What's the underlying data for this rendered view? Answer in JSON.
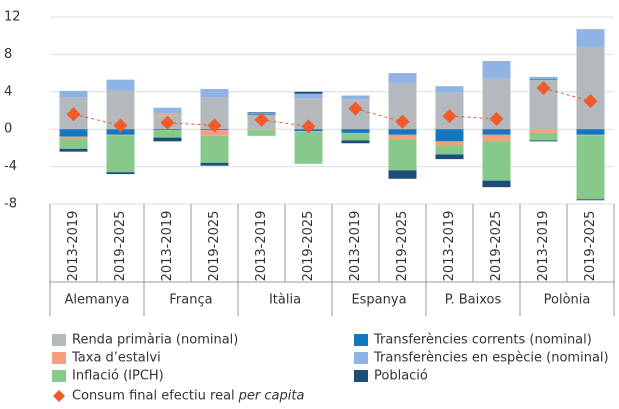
{
  "chart_data": {
    "type": "stacked-bar",
    "categories": [
      "2013-2019",
      "2019-2025",
      "2013-2019",
      "2019-2025",
      "2013-2019",
      "2019-2025",
      "2013-2019",
      "2019-2025",
      "2013-2019",
      "2019-2025",
      "2013-2019",
      "2019-2025"
    ],
    "groups": [
      "Alemanya",
      "França",
      "Itàlia",
      "Espanya",
      "P. Baixos",
      "Polònia"
    ],
    "ylim": [
      -8,
      12
    ],
    "yticks": [
      -8,
      -4,
      0,
      4,
      8,
      12
    ],
    "grid": true,
    "series": [
      {
        "name": "Renda primària (nominal)",
        "color": "#b4b9be",
        "values": [
          3.4,
          4.1,
          1.5,
          3.4,
          1.5,
          3.3,
          3.2,
          4.9,
          3.9,
          5.4,
          5.3,
          8.8
        ]
      },
      {
        "name": "Transferències corrents (nominal)",
        "color": "#1677c0",
        "values": [
          -0.8,
          -0.6,
          -0.1,
          -0.1,
          0.1,
          -0.2,
          -0.4,
          -0.6,
          -1.3,
          -0.6,
          0.1,
          -0.6
        ]
      },
      {
        "name": "Taxa d’estalvi",
        "color": "#f4a07c",
        "values": [
          -0.2,
          -0.1,
          0.2,
          -0.6,
          -0.1,
          -0.1,
          -0.1,
          -0.5,
          -0.5,
          -0.7,
          -0.4,
          -0.1
        ]
      },
      {
        "name": "Transferències en espècie (nominal)",
        "color": "#8fb3e2",
        "values": [
          0.7,
          1.2,
          0.6,
          0.9,
          0.1,
          0.5,
          0.4,
          1.1,
          0.7,
          1.9,
          0.2,
          1.9
        ]
      },
      {
        "name": "Inflació (IPCH)",
        "color": "#86c98a",
        "values": [
          -1.1,
          -3.9,
          -0.8,
          -2.9,
          -0.6,
          -3.4,
          -0.7,
          -3.3,
          -0.9,
          -4.2,
          -0.8,
          -6.8
        ]
      },
      {
        "name": "Població",
        "color": "#1b4d78",
        "values": [
          -0.3,
          -0.2,
          -0.4,
          -0.3,
          0.1,
          0.2,
          -0.3,
          -0.9,
          -0.5,
          -0.7,
          -0.1,
          -0.1
        ]
      }
    ],
    "consum": {
      "name": "Consum final efectiu real",
      "name_italic": "per capita",
      "color": "#ef5b2a",
      "values": [
        1.6,
        0.4,
        0.7,
        0.4,
        1.0,
        0.3,
        2.2,
        0.8,
        1.4,
        1.1,
        4.4,
        3.0
      ]
    }
  }
}
